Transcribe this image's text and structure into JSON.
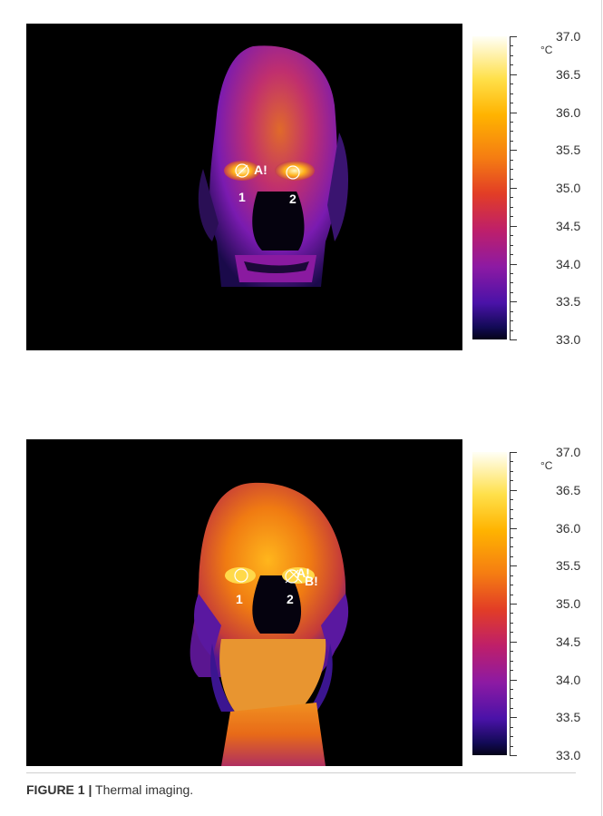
{
  "figure": {
    "caption_label": "FIGURE 1 |",
    "caption_text": " Thermal imaging."
  },
  "panels": [
    {
      "name": "top-thermal-image",
      "markers": [
        "A!",
        "1",
        "2"
      ],
      "colorbar": {
        "unit": "°C",
        "ticks": [
          "37.0",
          "36.5",
          "36.0",
          "35.5",
          "35.0",
          "34.5",
          "34.0",
          "33.5",
          "33.0"
        ]
      }
    },
    {
      "name": "bottom-thermal-image",
      "markers": [
        "A!",
        "B!",
        "1",
        "2"
      ],
      "colorbar": {
        "unit": "°C",
        "ticks": [
          "37.0",
          "36.5",
          "36.0",
          "35.5",
          "35.0",
          "34.5",
          "34.0",
          "33.5",
          "33.0"
        ]
      }
    }
  ]
}
